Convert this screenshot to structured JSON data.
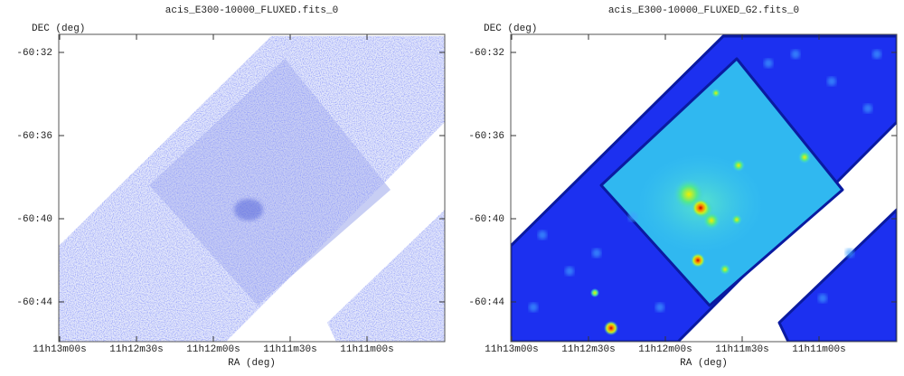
{
  "panels": [
    {
      "title": "acis_E300-10000_FLUXED.fits_0",
      "y_label": "DEC (deg)",
      "x_label": "RA (deg)",
      "yticks": [
        "-60:32",
        "-60:36",
        "-60:40",
        "-60:44"
      ],
      "xticks": [
        "11h13m00s",
        "11h12m30s",
        "11h12m00s",
        "11h11m30s",
        "11h11m00s"
      ]
    },
    {
      "title": "acis_E300-10000_FLUXED_G2.fits_0",
      "y_label": "DEC (deg)",
      "x_label": "RA (deg)",
      "yticks": [
        "-60:32",
        "-60:36",
        "-60:40",
        "-60:44"
      ],
      "xticks": [
        "11h13m00s",
        "11h12m30s",
        "11h12m00s",
        "11h11m30s",
        "11h11m00s"
      ]
    }
  ]
}
